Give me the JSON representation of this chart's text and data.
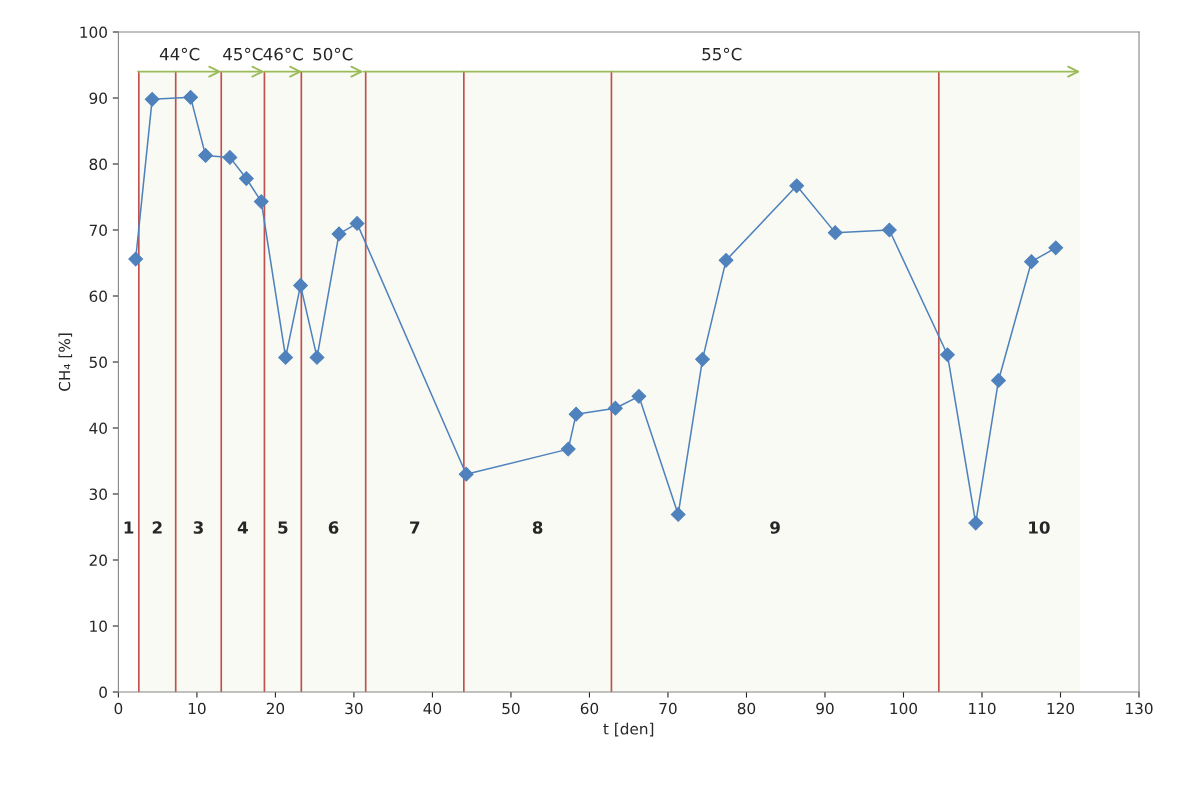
{
  "chart_data": {
    "type": "line",
    "xlabel": "t [den]",
    "ylabel": "CH₄ [%]",
    "xlim": [
      0,
      130
    ],
    "xticks": [
      0,
      10,
      20,
      30,
      40,
      50,
      60,
      70,
      80,
      90,
      100,
      110,
      120,
      130
    ],
    "ylim": [
      0,
      100
    ],
    "yticks": [
      0,
      10,
      20,
      30,
      40,
      50,
      60,
      70,
      80,
      90,
      100
    ],
    "grid": false,
    "marker": "diamond",
    "line_style": "solid",
    "x": [
      2.2,
      4.3,
      9.2,
      11.1,
      14.2,
      16.3,
      18.2,
      21.3,
      23.2,
      25.3,
      28.1,
      30.4,
      44.3,
      57.3,
      58.3,
      63.3,
      66.3,
      71.3,
      74.4,
      77.4,
      86.4,
      91.3,
      98.2,
      105.6,
      109.2,
      112.1,
      116.3,
      119.4
    ],
    "series": [
      {
        "color": "#4f81bd",
        "values": [
          65.6,
          89.8,
          90.1,
          81.3,
          81.0,
          77.8,
          74.3,
          50.7,
          61.6,
          50.7,
          69.4,
          71.0,
          33.0,
          36.8,
          42.1,
          43.0,
          44.8,
          26.9,
          50.4,
          65.4,
          76.7,
          69.6,
          70.0,
          51.1,
          25.6,
          47.2,
          65.2,
          67.3
        ]
      }
    ],
    "ref_lines": [
      {
        "axis": "x",
        "value": 2.6,
        "color": "#c0504d"
      },
      {
        "axis": "x",
        "value": 7.3,
        "color": "#c0504d"
      },
      {
        "axis": "x",
        "value": 13.1,
        "color": "#c0504d"
      },
      {
        "axis": "x",
        "value": 18.6,
        "color": "#c0504d"
      },
      {
        "axis": "x",
        "value": 23.3,
        "color": "#c0504d"
      },
      {
        "axis": "x",
        "value": 31.5,
        "color": "#c0504d"
      },
      {
        "axis": "x",
        "value": 44,
        "color": "#c0504d"
      },
      {
        "axis": "x",
        "value": 62.8,
        "color": "#c0504d"
      },
      {
        "axis": "x",
        "value": 104.5,
        "color": "#c0504d"
      }
    ],
    "bands": [
      {
        "axis": "x",
        "from": 2.5,
        "to": 13.1,
        "label": "44°C",
        "color": "#9bbb59"
      },
      {
        "axis": "x",
        "from": 13.1,
        "to": 18.6,
        "label": "45°C",
        "color": "#9bbb59"
      },
      {
        "axis": "x",
        "from": 18.6,
        "to": 23.4,
        "label": "46°C",
        "color": "#9bbb59"
      },
      {
        "axis": "x",
        "from": 23.4,
        "to": 31.2,
        "label": "50°C",
        "color": "#9bbb59"
      },
      {
        "axis": "x",
        "from": 31.2,
        "to": 122.5,
        "label": "55°C",
        "color": "#9bbb59"
      }
    ],
    "annotations": [
      "1",
      "2",
      "3",
      "4",
      "5",
      "6",
      "7",
      "8",
      "9",
      "10"
    ]
  }
}
